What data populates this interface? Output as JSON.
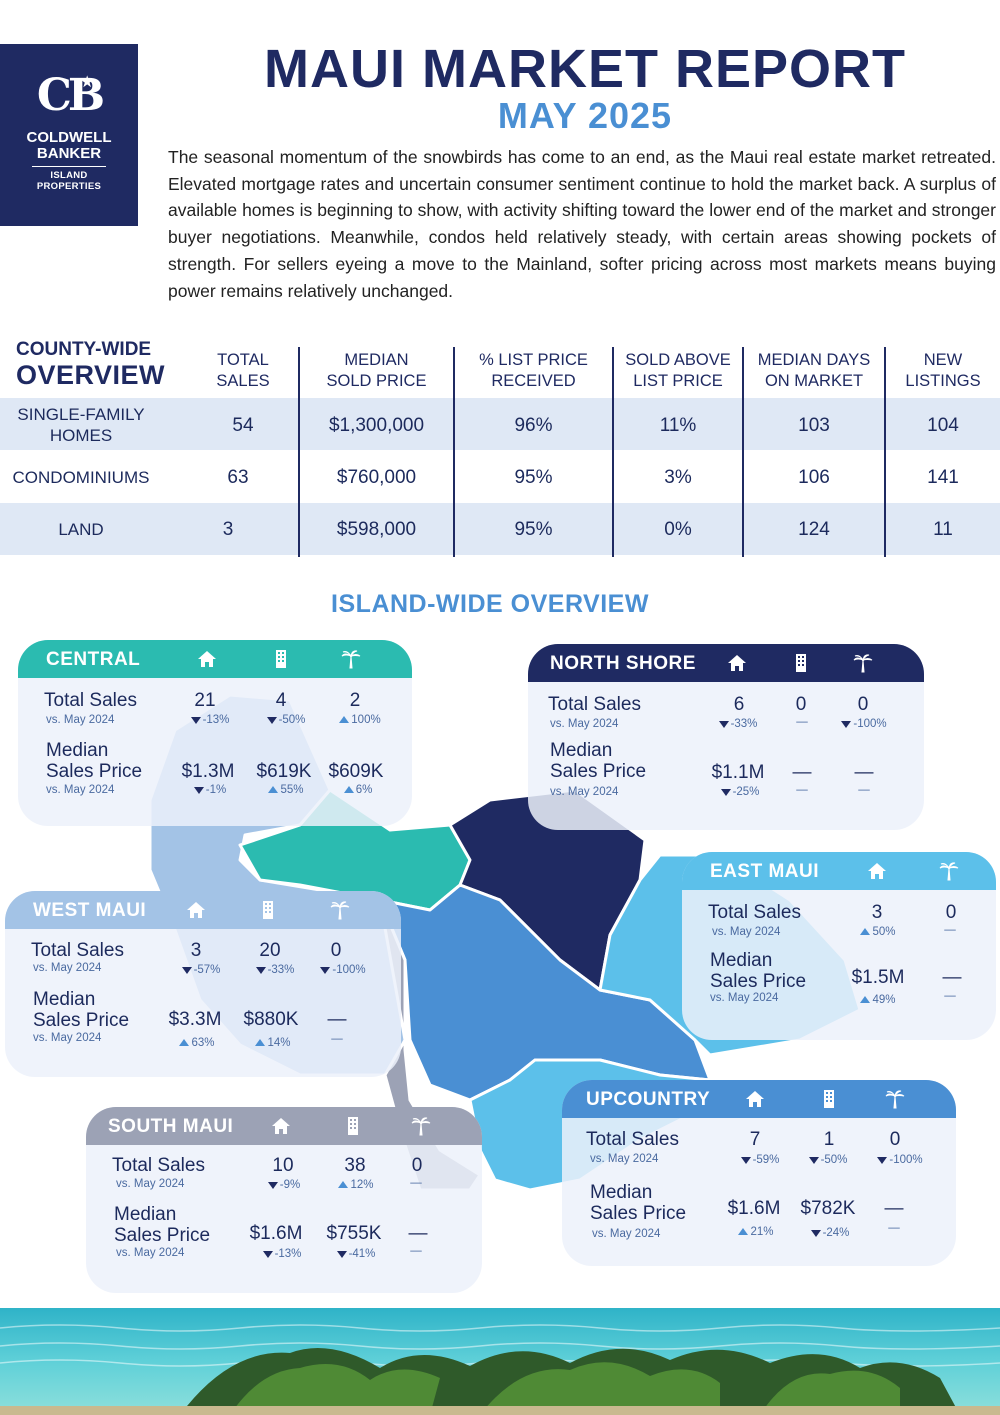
{
  "logo": {
    "brand_line1": "COLDWELL",
    "brand_line2": "BANKER",
    "brand_line3": "ISLAND",
    "brand_line4": "PROPERTIES"
  },
  "header": {
    "title": "MAUI MARKET REPORT",
    "subtitle": "MAY 2025"
  },
  "intro": "The seasonal momentum of the snowbirds has come to an end, as the Maui real estate market retreated. Elevated mortgage rates and uncertain consumer sentiment continue to hold the market back. A surplus of available homes is beginning to show, with activity shifting toward the lower end of the market and stronger buyer negotiations. Meanwhile, condos held relatively steady, with certain areas showing pockets of strength. For sellers eyeing a move to the Mainland, softer pricing across most markets means buying power remains relatively unchanged.",
  "county": {
    "heading1": "COUNTY-WIDE",
    "heading2": "OVERVIEW",
    "columns": [
      {
        "line1": "TOTAL",
        "line2": "SALES"
      },
      {
        "line1": "MEDIAN",
        "line2": "SOLD PRICE"
      },
      {
        "line1": "% LIST PRICE",
        "line2": "RECEIVED"
      },
      {
        "line1": "SOLD ABOVE",
        "line2": "LIST PRICE"
      },
      {
        "line1": "MEDIAN DAYS",
        "line2": "ON MARKET"
      },
      {
        "line1": "NEW",
        "line2": "LISTINGS"
      }
    ],
    "rows": [
      {
        "line1": "SINGLE-FAMILY",
        "line2": "HOMES",
        "values": [
          "54",
          "$1,300,000",
          "96%",
          "11%",
          "103",
          "104"
        ]
      },
      {
        "line1": "CONDOMINIUMS",
        "line2": "",
        "values": [
          "63",
          "$760,000",
          "95%",
          "3%",
          "106",
          "141"
        ]
      },
      {
        "line1": "LAND",
        "line2": "",
        "values": [
          "3",
          "$598,000",
          "95%",
          "0%",
          "124",
          "11"
        ]
      }
    ]
  },
  "island": {
    "title": "ISLAND-WIDE OVERVIEW",
    "labels": {
      "sales": "Total Sales",
      "price1": "Median",
      "price2": "Sales Price",
      "vs": "vs. May 2024",
      "dash": "—"
    },
    "regions": {
      "central": {
        "name": "CENTRAL",
        "sales": [
          "21",
          "4",
          "2"
        ],
        "sales_chg": [
          "-13%",
          "-50%",
          "100%"
        ],
        "price": [
          "$1.3M",
          "$619K",
          "$609K"
        ],
        "price_chg": [
          "-1%",
          "55%",
          "6%"
        ]
      },
      "north": {
        "name": "NORTH SHORE",
        "sales": [
          "6",
          "0",
          "0"
        ],
        "sales_chg": [
          "-33%",
          "—",
          "-100%"
        ],
        "price": [
          "$1.1M",
          "—",
          "—"
        ],
        "price_chg": [
          "-25%",
          "—",
          "—"
        ]
      },
      "east": {
        "name": "EAST MAUI",
        "sales": [
          "3",
          "0"
        ],
        "sales_chg": [
          "50%",
          "—"
        ],
        "price": [
          "$1.5M",
          "—"
        ],
        "price_chg": [
          "49%",
          "—"
        ]
      },
      "west": {
        "name": "WEST MAUI",
        "sales": [
          "3",
          "20",
          "0"
        ],
        "sales_chg": [
          "-57%",
          "-33%",
          "-100%"
        ],
        "price": [
          "$3.3M",
          "$880K",
          "—"
        ],
        "price_chg": [
          "63%",
          "14%",
          "—"
        ]
      },
      "south": {
        "name": "SOUTH MAUI",
        "sales": [
          "10",
          "38",
          "0"
        ],
        "sales_chg": [
          "-9%",
          "12%",
          "—"
        ],
        "price": [
          "$1.6M",
          "$755K",
          "—"
        ],
        "price_chg": [
          "-13%",
          "-41%",
          "—"
        ]
      },
      "upcountry": {
        "name": "UPCOUNTRY",
        "sales": [
          "7",
          "1",
          "0"
        ],
        "sales_chg": [
          "-59%",
          "-50%",
          "-100%"
        ],
        "price": [
          "$1.6M",
          "$782K",
          "—"
        ],
        "price_chg": [
          "21%",
          "-24%",
          "—"
        ]
      }
    }
  },
  "colors": {
    "navy": "#1f2a62",
    "accent_blue": "#4a8fd3",
    "central": "#2bbbb0",
    "north": "#1f2a62",
    "east": "#5cc0ea",
    "west": "#a3c3e6",
    "south": "#9ca2b5",
    "upcountry": "#4a8fd3"
  },
  "icons": [
    "house-icon",
    "condo-building-icon",
    "palm-tree-icon"
  ]
}
